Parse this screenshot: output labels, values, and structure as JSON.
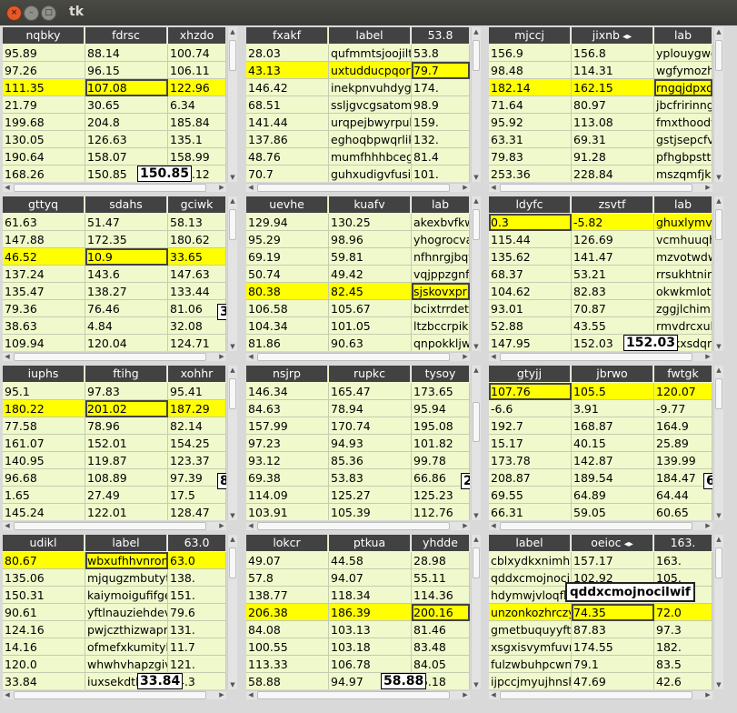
{
  "window": {
    "title": "tk",
    "close_glyph": "×",
    "min_glyph": "–",
    "max_glyph": "□"
  },
  "tooltip": "qddxcmojnocilwif",
  "panels": [
    {
      "id": "p1",
      "headers": [
        "nqbky",
        "fdrsc",
        "xhzdo"
      ],
      "header_arrows": false,
      "rows": [
        [
          "95.89",
          "88.14",
          "100.74"
        ],
        [
          "97.26",
          "96.15",
          "106.11"
        ],
        [
          "111.35",
          "107.08",
          "122.96"
        ],
        [
          "21.79",
          "30.65",
          "6.34"
        ],
        [
          "199.68",
          "204.8",
          "185.84"
        ],
        [
          "130.05",
          "126.63",
          "135.1"
        ],
        [
          "190.64",
          "158.07",
          "158.99"
        ],
        [
          "168.26",
          "150.85",
          "157.12"
        ]
      ],
      "highlight_row": 2,
      "active_col": 1,
      "float_text": "150.85"
    },
    {
      "id": "p2",
      "headers": [
        "fxakf",
        "label",
        "53.8"
      ],
      "header_arrows": false,
      "rows": [
        [
          "28.03",
          "qufmmtsjoojiltzv",
          "53.8"
        ],
        [
          "43.13",
          "uxtudducpqortzko",
          "79.7"
        ],
        [
          "146.42",
          "inekpnvuhdygtltb",
          "174."
        ],
        [
          "68.51",
          "ssljgvcgsatomrnp",
          "98.9"
        ],
        [
          "141.44",
          "urqpejbwyrpuhfdv",
          "159."
        ],
        [
          "137.86",
          "eghoqbpwqrliktds",
          "132."
        ],
        [
          "48.76",
          "mumfhhhbcegfwgre",
          "81.4"
        ],
        [
          "70.7",
          "guhxudigvfusilnm",
          "101."
        ]
      ],
      "highlight_row": 1,
      "active_col": 2,
      "float_text": ""
    },
    {
      "id": "p3",
      "headers": [
        "mjccj",
        "jixnb",
        "lab"
      ],
      "header_arrows": true,
      "rows": [
        [
          "156.9",
          "156.8",
          "yplouygwo"
        ],
        [
          "98.48",
          "114.31",
          "wgfymozhf"
        ],
        [
          "182.14",
          "162.15",
          "rngqjdpxob"
        ],
        [
          "71.64",
          "80.97",
          "jbcfririnngd"
        ],
        [
          "95.92",
          "113.08",
          "fmxthoodyf"
        ],
        [
          "63.31",
          "69.31",
          "gstjsepcfvc"
        ],
        [
          "79.83",
          "91.28",
          "pfhgbpsttm"
        ],
        [
          "253.36",
          "228.84",
          "mszqmfjkb"
        ]
      ],
      "highlight_row": 2,
      "active_col": 2,
      "float_text": ""
    },
    {
      "id": "p4",
      "headers": [
        "gttyq",
        "sdahs",
        "gciwk"
      ],
      "header_arrows": false,
      "rows": [
        [
          "61.63",
          "51.47",
          "58.13"
        ],
        [
          "147.88",
          "172.35",
          "180.62"
        ],
        [
          "46.52",
          "10.9",
          "33.65"
        ],
        [
          "137.24",
          "143.6",
          "147.63"
        ],
        [
          "135.47",
          "138.27",
          "133.44"
        ],
        [
          "79.36",
          "76.46",
          "81.06"
        ],
        [
          "38.63",
          "4.84",
          "32.08"
        ],
        [
          "109.94",
          "120.04",
          "124.71"
        ]
      ],
      "highlight_row": 2,
      "active_col": 1,
      "float_text": "3"
    },
    {
      "id": "p5",
      "headers": [
        "uevhe",
        "kuafv",
        "lab"
      ],
      "header_arrows": false,
      "rows": [
        [
          "129.94",
          "130.25",
          "akexbvfkwl"
        ],
        [
          "95.29",
          "98.96",
          "yhogrocvae"
        ],
        [
          "69.19",
          "59.81",
          "nfhnrgjbqtc"
        ],
        [
          "50.74",
          "49.42",
          "vqjppzgnfe"
        ],
        [
          "80.38",
          "82.45",
          "sjskovxprig"
        ],
        [
          "106.58",
          "105.67",
          "bcixtrrdetb"
        ],
        [
          "104.34",
          "101.05",
          "ltzbccrpikb"
        ],
        [
          "81.86",
          "90.63",
          "qnpokkljw"
        ]
      ],
      "highlight_row": 4,
      "active_col": 2,
      "float_text": ""
    },
    {
      "id": "p6",
      "headers": [
        "ldyfc",
        "zsvtf",
        "lab"
      ],
      "header_arrows": false,
      "rows": [
        [
          "0.3",
          "-5.82",
          "ghuxlymve"
        ],
        [
          "115.44",
          "126.69",
          "vcmhuuqha"
        ],
        [
          "135.62",
          "141.47",
          "mzvotwdw"
        ],
        [
          "68.37",
          "53.21",
          "rrsukhtnim"
        ],
        [
          "104.62",
          "82.83",
          "okwkmlotkj"
        ],
        [
          "93.01",
          "70.87",
          "zggjlchimru"
        ],
        [
          "52.88",
          "43.55",
          "rmvdrcxulv"
        ],
        [
          "147.95",
          "152.03",
          "cjrlkxsdqr"
        ]
      ],
      "highlight_row": 0,
      "active_col": 0,
      "float_text": "152.03"
    },
    {
      "id": "p7",
      "headers": [
        "iuphs",
        "ftihg",
        "xohhr"
      ],
      "header_arrows": false,
      "rows": [
        [
          "95.1",
          "97.83",
          "95.41"
        ],
        [
          "180.22",
          "201.02",
          "187.29"
        ],
        [
          "77.58",
          "78.96",
          "82.14"
        ],
        [
          "161.07",
          "152.01",
          "154.25"
        ],
        [
          "140.95",
          "119.87",
          "123.37"
        ],
        [
          "96.68",
          "108.89",
          "97.39"
        ],
        [
          "1.65",
          "27.49",
          "17.5"
        ],
        [
          "145.24",
          "122.01",
          "128.47"
        ]
      ],
      "highlight_row": 1,
      "active_col": 1,
      "float_text": "8"
    },
    {
      "id": "p8",
      "headers": [
        "nsjrp",
        "rupkc",
        "tysoy"
      ],
      "header_arrows": false,
      "rows": [
        [
          "146.34",
          "165.47",
          "173.65"
        ],
        [
          "84.63",
          "78.94",
          "95.94"
        ],
        [
          "157.99",
          "170.74",
          "195.08"
        ],
        [
          "97.23",
          "94.93",
          "101.82"
        ],
        [
          "93.12",
          "85.36",
          "99.78"
        ],
        [
          "69.38",
          "53.83",
          "66.86"
        ],
        [
          "114.09",
          "125.27",
          "125.23"
        ],
        [
          "103.91",
          "105.39",
          "112.76"
        ]
      ],
      "highlight_row": -1,
      "active_col": -1,
      "float_text": "2"
    },
    {
      "id": "p9",
      "headers": [
        "gtyjj",
        "jbrwo",
        "fwtgk"
      ],
      "header_arrows": false,
      "rows": [
        [
          "107.76",
          "105.5",
          "120.07"
        ],
        [
          "-6.6",
          "3.91",
          "-9.77"
        ],
        [
          "192.7",
          "168.87",
          "164.9"
        ],
        [
          "15.17",
          "40.15",
          "25.89"
        ],
        [
          "173.78",
          "142.87",
          "139.99"
        ],
        [
          "208.87",
          "189.54",
          "184.47"
        ],
        [
          "69.55",
          "64.89",
          "64.44"
        ],
        [
          "66.31",
          "59.05",
          "60.65"
        ]
      ],
      "highlight_row": 0,
      "active_col": 0,
      "float_text": "6"
    },
    {
      "id": "p10",
      "headers": [
        "udikl",
        "label",
        "63.0"
      ],
      "header_arrows": false,
      "rows": [
        [
          "80.67",
          "wbxufhhvnronmbqc",
          "63.0"
        ],
        [
          "135.06",
          "mjqugzmbutyttgui",
          "138."
        ],
        [
          "150.31",
          "kaiymoigufifgell",
          "151."
        ],
        [
          "90.61",
          "yftlnauziehdevjl",
          "79.6"
        ],
        [
          "124.16",
          "pwjczthizwaprhxc",
          "131."
        ],
        [
          "14.16",
          "ofmefxkumitykpry",
          "11.7"
        ],
        [
          "120.0",
          "whwhvhapzgivwngt",
          "121."
        ],
        [
          "33.84",
          "iuxsekdtlazebcpl",
          "34.3"
        ]
      ],
      "highlight_row": 0,
      "active_col": 1,
      "float_text": "33.84"
    },
    {
      "id": "p11",
      "headers": [
        "lokcr",
        "ptkua",
        "yhdde"
      ],
      "header_arrows": false,
      "rows": [
        [
          "49.07",
          "44.58",
          "28.98"
        ],
        [
          "57.8",
          "94.07",
          "55.11"
        ],
        [
          "138.77",
          "118.34",
          "114.36"
        ],
        [
          "206.38",
          "186.39",
          "200.16"
        ],
        [
          "84.08",
          "103.13",
          "81.46"
        ],
        [
          "100.55",
          "103.18",
          "83.48"
        ],
        [
          "113.33",
          "106.78",
          "84.05"
        ],
        [
          "58.88",
          "94.97",
          "55.18"
        ]
      ],
      "highlight_row": 3,
      "active_col": 2,
      "float_text": "58.88"
    },
    {
      "id": "p12",
      "headers": [
        "label",
        "oeioc",
        "163."
      ],
      "header_arrows": true,
      "rows": [
        [
          "cblxydkxnimhwqzk",
          "157.17",
          "163."
        ],
        [
          "qddxcmojnocilwif",
          "102.92",
          "105."
        ],
        [
          "hdymwjvloqflsoqh",
          "103.18",
          "104."
        ],
        [
          "unzonkozhrczywwc",
          "74.35",
          "72.0"
        ],
        [
          "gmetbuquyyftbcrd",
          "87.83",
          "97.3"
        ],
        [
          "xsgxisvymfuvmoyh",
          "174.55",
          "182."
        ],
        [
          "fulzwbuhpcwnwepo",
          "79.1",
          "83.5"
        ],
        [
          "ijpccjmyujhnshjp",
          "47.69",
          "42.6"
        ]
      ],
      "highlight_row": 3,
      "active_col": 1,
      "float_text": ""
    }
  ]
}
